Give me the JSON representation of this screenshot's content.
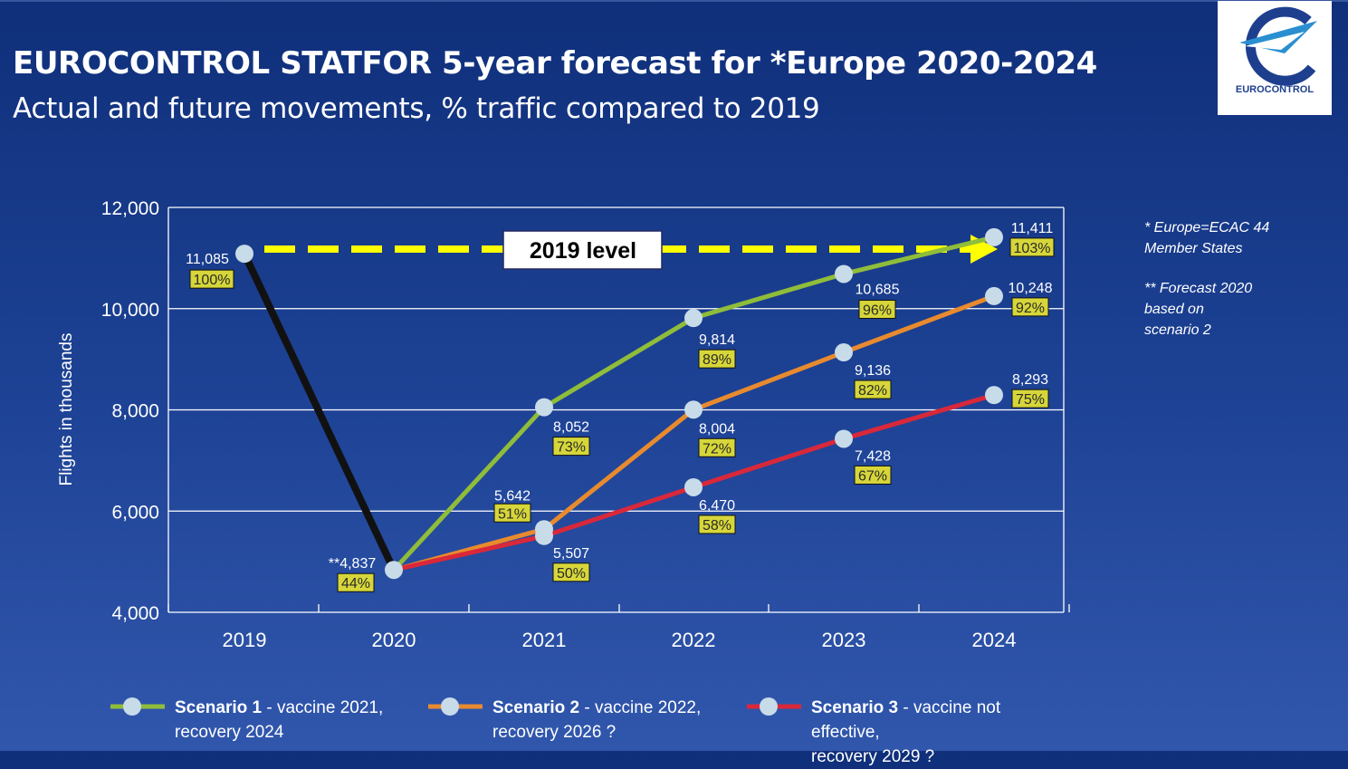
{
  "header": {
    "title": "EUROCONTROL STATFOR 5-year forecast for *Europe 2020-2024",
    "subtitle": "Actual and future movements, % traffic compared to 2019"
  },
  "logo": {
    "text": "EUROCONTROL",
    "icon": "eurocontrol-logo-icon",
    "color": "#1d3f8e"
  },
  "notes": [
    "* Europe=ECAC 44\nMember States",
    "** Forecast 2020\nbased on\nscenario 2"
  ],
  "chart_data": {
    "type": "line",
    "title": "",
    "xlabel": "",
    "ylabel": "Flights in thousands",
    "categories": [
      "2019",
      "2020",
      "2021",
      "2022",
      "2023",
      "2024"
    ],
    "ylim": [
      4000,
      12000
    ],
    "yticks": [
      4000,
      6000,
      8000,
      10000,
      12000
    ],
    "ytick_labels": [
      "4,000",
      "6,000",
      "8,000",
      "10,000",
      "12,000"
    ],
    "grid": true,
    "reference_line": {
      "label": "2019 level",
      "value": 11085,
      "color": "#ffff00"
    },
    "series": [
      {
        "key": "actual",
        "color": "#111111",
        "points": [
          {
            "x": "2019",
            "y": 11085,
            "value_label": "11,085",
            "pct_label": "100%"
          },
          {
            "x": "2020",
            "y": 4837,
            "value_label": "**4,837",
            "pct_label": "44%"
          }
        ]
      },
      {
        "key": "scenario1",
        "name": "Scenario 1",
        "color": "#8fbd3a",
        "points": [
          {
            "x": "2020",
            "y": 4837
          },
          {
            "x": "2021",
            "y": 8052,
            "value_label": "8,052",
            "pct_label": "73%"
          },
          {
            "x": "2022",
            "y": 9814,
            "value_label": "9,814",
            "pct_label": "89%"
          },
          {
            "x": "2023",
            "y": 10685,
            "value_label": "10,685",
            "pct_label": "96%"
          },
          {
            "x": "2024",
            "y": 11411,
            "value_label": "11,411",
            "pct_label": "103%"
          }
        ]
      },
      {
        "key": "scenario2",
        "name": "Scenario 2",
        "color": "#e88a2e",
        "points": [
          {
            "x": "2020",
            "y": 4837
          },
          {
            "x": "2021",
            "y": 5642,
            "value_label": "5,642",
            "pct_label": "51%"
          },
          {
            "x": "2022",
            "y": 8004,
            "value_label": "8,004",
            "pct_label": "72%"
          },
          {
            "x": "2023",
            "y": 9136,
            "value_label": "9,136",
            "pct_label": "82%"
          },
          {
            "x": "2024",
            "y": 10248,
            "value_label": "10,248",
            "pct_label": "92%"
          }
        ]
      },
      {
        "key": "scenario3",
        "name": "Scenario 3",
        "color": "#d9283a",
        "points": [
          {
            "x": "2020",
            "y": 4837
          },
          {
            "x": "2021",
            "y": 5507,
            "value_label": "5,507",
            "pct_label": "50%"
          },
          {
            "x": "2022",
            "y": 6470,
            "value_label": "6,470",
            "pct_label": "58%"
          },
          {
            "x": "2023",
            "y": 7428,
            "value_label": "7,428",
            "pct_label": "67%"
          },
          {
            "x": "2024",
            "y": 8293,
            "value_label": "8,293",
            "pct_label": "75%"
          }
        ]
      }
    ],
    "legend": [
      {
        "name": "Scenario 1",
        "rest": " - vaccine 2021,",
        "line2": "recovery 2024",
        "color": "#8fbd3a"
      },
      {
        "name": "Scenario 2",
        "rest": " - vaccine 2022,",
        "line2": "recovery 2026 ?",
        "color": "#e88a2e"
      },
      {
        "name": "Scenario 3",
        "rest": " - vaccine not effective,",
        "line2": "recovery 2029 ?",
        "color": "#d9283a"
      }
    ],
    "marker_color": "#c7dbe9",
    "label_box_color": "#d6d63a"
  }
}
